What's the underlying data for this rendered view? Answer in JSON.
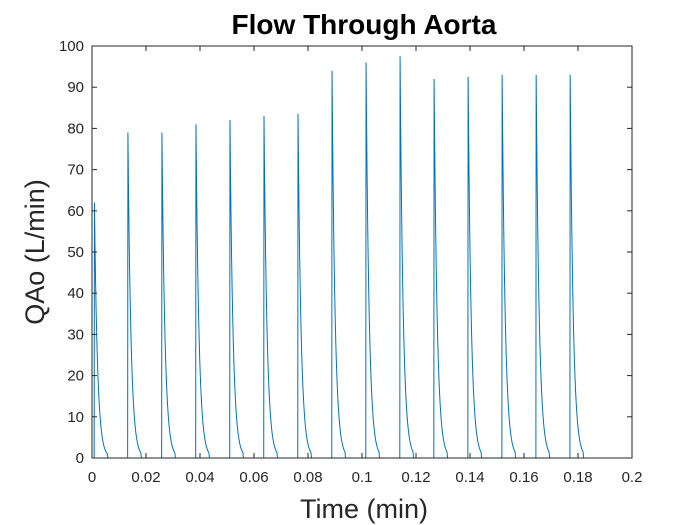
{
  "chart_data": {
    "type": "line",
    "title": "Flow Through Aorta",
    "xlabel": "Time (min)",
    "ylabel": "QAo (L/min)",
    "xlim": [
      0,
      0.2
    ],
    "ylim": [
      0,
      100
    ],
    "xticks": [
      0,
      0.02,
      0.04,
      0.06,
      0.08,
      0.1,
      0.12,
      0.14,
      0.16,
      0.18,
      0.2
    ],
    "xtick_labels": [
      "0",
      "0.02",
      "0.04",
      "0.06",
      "0.08",
      "0.1",
      "0.12",
      "0.14",
      "0.16",
      "0.18",
      "0.2"
    ],
    "yticks": [
      0,
      10,
      20,
      30,
      40,
      50,
      60,
      70,
      80,
      90,
      100
    ],
    "ytick_labels": [
      "0",
      "10",
      "20",
      "30",
      "40",
      "50",
      "60",
      "70",
      "80",
      "90",
      "100"
    ],
    "grid": false,
    "line_color": "#0072BD",
    "x_end": 0.187,
    "beats": [
      {
        "t": 0.0009,
        "peak": 62
      },
      {
        "t": 0.0133,
        "peak": 79
      },
      {
        "t": 0.0259,
        "peak": 79
      },
      {
        "t": 0.0385,
        "peak": 81
      },
      {
        "t": 0.0511,
        "peak": 82
      },
      {
        "t": 0.0637,
        "peak": 83
      },
      {
        "t": 0.0763,
        "peak": 83.5
      },
      {
        "t": 0.0889,
        "peak": 94
      },
      {
        "t": 0.1015,
        "peak": 96
      },
      {
        "t": 0.1141,
        "peak": 97.5
      },
      {
        "t": 0.1267,
        "peak": 92
      },
      {
        "t": 0.1393,
        "peak": 92.5
      },
      {
        "t": 0.1519,
        "peak": 93
      },
      {
        "t": 0.1645,
        "peak": 93
      },
      {
        "t": 0.1771,
        "peak": 93
      }
    ]
  }
}
